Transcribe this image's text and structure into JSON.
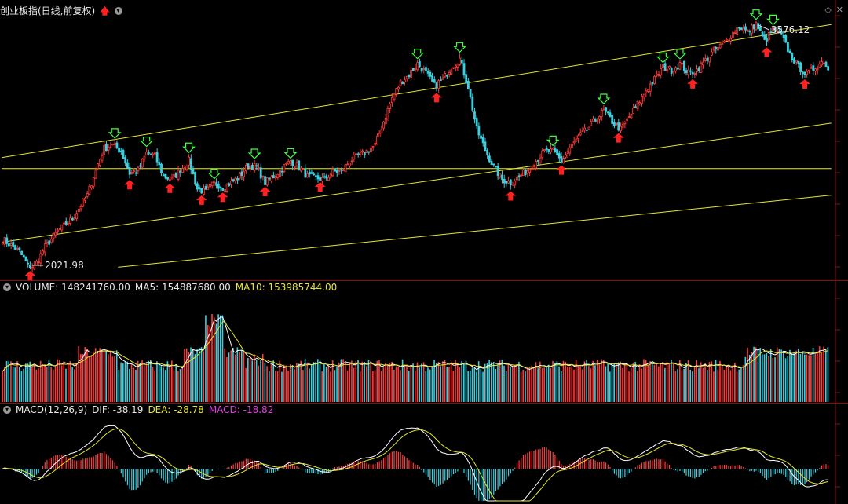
{
  "header": {
    "title": "创业板指(日线,前复权)",
    "high_label": "3576.12",
    "low_label": "2021.98"
  },
  "volume_panel": {
    "volume_label": "VOLUME: 148241760.00",
    "ma5_label": "MA5: 154887680.00",
    "ma10_label": "MA10: 153985744.00"
  },
  "macd_panel": {
    "name_label": "MACD(12,26,9)",
    "dif_label": "DIF: -38.19",
    "dea_label": "DEA: -28.78",
    "macd_label": "MACD: -18.82"
  },
  "colors": {
    "up": "#ff3c3c",
    "down": "#3ad0e0",
    "channel": "#e6e632",
    "ma5": "#ffffff",
    "ma10": "#e6e632",
    "macd_text": "#e040e0",
    "buy_arrow": "#ff2020",
    "sell_arrow": "#40ff40"
  },
  "icons": {
    "title_arrow": "red-up-arrow-icon",
    "title_toggle": "chevron-down-circle-icon",
    "diamond": "diamond-icon",
    "close": "close-icon"
  },
  "chart_data": {
    "type": "candlestick",
    "title": "创业板指(日线,前复权)",
    "xlabel": "",
    "ylabel": "",
    "grid": false,
    "price_high": 3576.12,
    "price_low": 2021.98,
    "keypoints": [
      [
        0,
        2200
      ],
      [
        4,
        2160
      ],
      [
        8,
        2120
      ],
      [
        12,
        2030
      ],
      [
        15,
        2022
      ],
      [
        20,
        2150
      ],
      [
        26,
        2250
      ],
      [
        33,
        2330
      ],
      [
        40,
        2480
      ],
      [
        45,
        2680
      ],
      [
        48,
        2780
      ],
      [
        52,
        2800
      ],
      [
        56,
        2760
      ],
      [
        60,
        2620
      ],
      [
        64,
        2640
      ],
      [
        68,
        2750
      ],
      [
        72,
        2730
      ],
      [
        76,
        2600
      ],
      [
        80,
        2580
      ],
      [
        84,
        2640
      ],
      [
        88,
        2700
      ],
      [
        92,
        2520
      ],
      [
        96,
        2500
      ],
      [
        100,
        2560
      ],
      [
        104,
        2530
      ],
      [
        108,
        2560
      ],
      [
        112,
        2600
      ],
      [
        116,
        2670
      ],
      [
        120,
        2660
      ],
      [
        124,
        2560
      ],
      [
        128,
        2600
      ],
      [
        132,
        2650
      ],
      [
        136,
        2700
      ],
      [
        140,
        2660
      ],
      [
        144,
        2600
      ],
      [
        148,
        2590
      ],
      [
        152,
        2580
      ],
      [
        156,
        2630
      ],
      [
        160,
        2630
      ],
      [
        164,
        2700
      ],
      [
        168,
        2730
      ],
      [
        172,
        2760
      ],
      [
        176,
        2800
      ],
      [
        180,
        2950
      ],
      [
        184,
        3100
      ],
      [
        188,
        3200
      ],
      [
        192,
        3250
      ],
      [
        196,
        3320
      ],
      [
        200,
        3260
      ],
      [
        204,
        3180
      ],
      [
        208,
        3220
      ],
      [
        212,
        3300
      ],
      [
        216,
        3350
      ],
      [
        220,
        3170
      ],
      [
        224,
        2900
      ],
      [
        228,
        2770
      ],
      [
        232,
        2660
      ],
      [
        236,
        2580
      ],
      [
        240,
        2560
      ],
      [
        244,
        2600
      ],
      [
        248,
        2640
      ],
      [
        252,
        2700
      ],
      [
        256,
        2760
      ],
      [
        260,
        2760
      ],
      [
        264,
        2700
      ],
      [
        268,
        2780
      ],
      [
        272,
        2850
      ],
      [
        276,
        2900
      ],
      [
        280,
        2960
      ],
      [
        284,
        3020
      ],
      [
        288,
        2950
      ],
      [
        292,
        2900
      ],
      [
        296,
        2980
      ],
      [
        300,
        3060
      ],
      [
        304,
        3150
      ],
      [
        308,
        3220
      ],
      [
        312,
        3300
      ],
      [
        316,
        3280
      ],
      [
        320,
        3320
      ],
      [
        324,
        3260
      ],
      [
        328,
        3280
      ],
      [
        332,
        3340
      ],
      [
        336,
        3400
      ],
      [
        340,
        3440
      ],
      [
        344,
        3500
      ],
      [
        348,
        3560
      ],
      [
        352,
        3520
      ],
      [
        356,
        3576
      ],
      [
        360,
        3460
      ],
      [
        364,
        3540
      ],
      [
        368,
        3500
      ],
      [
        372,
        3380
      ],
      [
        376,
        3300
      ],
      [
        380,
        3250
      ],
      [
        384,
        3300
      ],
      [
        388,
        3340
      ],
      [
        390,
        3280
      ]
    ],
    "series": [
      {
        "name": "MA5",
        "values": []
      },
      {
        "name": "MA10",
        "values": []
      }
    ]
  }
}
